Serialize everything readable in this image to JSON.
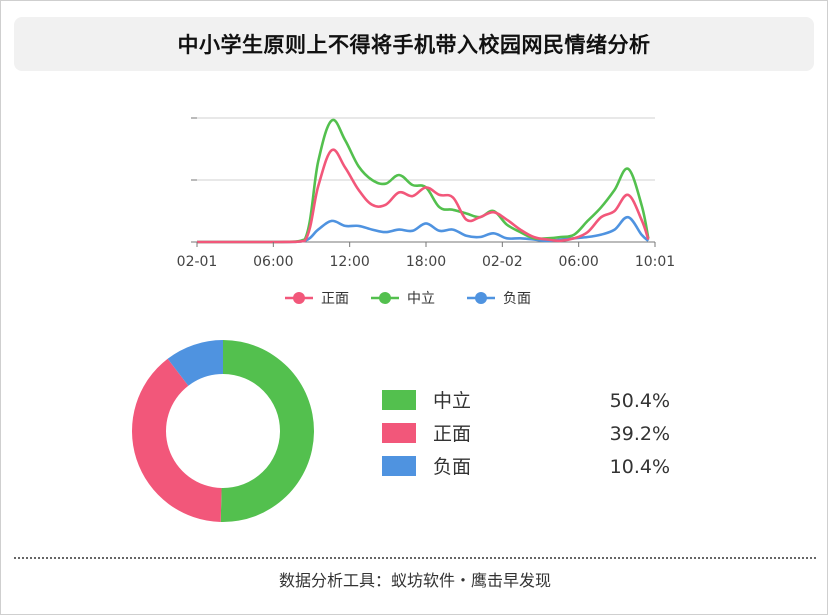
{
  "title": "中小学生原则上不得将手机带入校园网民情绪分析",
  "footer": "数据分析工具：蚁坊软件・鹰击早发现",
  "colors": {
    "positive": "#f2577a",
    "neutral": "#53c04e",
    "negative": "#4f93e0"
  },
  "chart_data": [
    {
      "type": "line",
      "x_tick_labels": [
        "02-01",
        "06:00",
        "12:00",
        "18:00",
        "02-02",
        "06:00",
        "10:01"
      ],
      "x_range": [
        0,
        34
      ],
      "x_unit": "hours since 02-01 00:00",
      "y_range": [
        0,
        100
      ],
      "grid": true,
      "legend_position": "bottom",
      "series": [
        {
          "name": "正面",
          "color": "#f2577a",
          "points": [
            [
              0,
              0
            ],
            [
              6,
              0
            ],
            [
              8,
              1
            ],
            [
              9,
              45
            ],
            [
              10,
              74
            ],
            [
              11,
              60
            ],
            [
              12,
              42
            ],
            [
              13,
              30
            ],
            [
              14,
              30
            ],
            [
              15,
              40
            ],
            [
              16,
              37
            ],
            [
              17,
              44
            ],
            [
              18,
              38
            ],
            [
              19,
              36
            ],
            [
              20,
              18
            ],
            [
              21,
              20
            ],
            [
              22,
              24
            ],
            [
              23,
              18
            ],
            [
              24,
              10
            ],
            [
              25,
              4
            ],
            [
              26,
              2
            ],
            [
              27,
              1
            ],
            [
              28,
              3
            ],
            [
              29,
              8
            ],
            [
              30,
              20
            ],
            [
              31,
              25
            ],
            [
              32,
              38
            ],
            [
              33,
              18
            ],
            [
              33.5,
              2
            ]
          ]
        },
        {
          "name": "中立",
          "color": "#53c04e",
          "points": [
            [
              0,
              0
            ],
            [
              6,
              0
            ],
            [
              8,
              2
            ],
            [
              9,
              65
            ],
            [
              10,
              98
            ],
            [
              11,
              82
            ],
            [
              12,
              61
            ],
            [
              13,
              50
            ],
            [
              14,
              47
            ],
            [
              15,
              54
            ],
            [
              16,
              46
            ],
            [
              17,
              44
            ],
            [
              18,
              28
            ],
            [
              19,
              26
            ],
            [
              20,
              23
            ],
            [
              21,
              20
            ],
            [
              22,
              25
            ],
            [
              23,
              14
            ],
            [
              24,
              8
            ],
            [
              25,
              3
            ],
            [
              26,
              3
            ],
            [
              27,
              4
            ],
            [
              28,
              6
            ],
            [
              29,
              17
            ],
            [
              30,
              28
            ],
            [
              31,
              42
            ],
            [
              32,
              59
            ],
            [
              33,
              30
            ],
            [
              33.5,
              3
            ]
          ]
        },
        {
          "name": "负面",
          "color": "#4f93e0",
          "points": [
            [
              0,
              0
            ],
            [
              6,
              0
            ],
            [
              8,
              1
            ],
            [
              9,
              10
            ],
            [
              10,
              17
            ],
            [
              11,
              13
            ],
            [
              12,
              13
            ],
            [
              13,
              10
            ],
            [
              14,
              8
            ],
            [
              15,
              10
            ],
            [
              16,
              9
            ],
            [
              17,
              15
            ],
            [
              18,
              9
            ],
            [
              19,
              10
            ],
            [
              20,
              5
            ],
            [
              21,
              4
            ],
            [
              22,
              7
            ],
            [
              23,
              3
            ],
            [
              24,
              3
            ],
            [
              25,
              2
            ],
            [
              26,
              1
            ],
            [
              27,
              2
            ],
            [
              28,
              3
            ],
            [
              29,
              4
            ],
            [
              30,
              6
            ],
            [
              31,
              10
            ],
            [
              32,
              20
            ],
            [
              33,
              6
            ],
            [
              33.5,
              1
            ]
          ]
        }
      ]
    },
    {
      "type": "pie",
      "style": "donut",
      "slices": [
        {
          "label": "中立",
          "value": 50.4,
          "display": "50.4%",
          "color": "#53c04e"
        },
        {
          "label": "正面",
          "value": 39.2,
          "display": "39.2%",
          "color": "#f2577a"
        },
        {
          "label": "负面",
          "value": 10.4,
          "display": "10.4%",
          "color": "#4f93e0"
        }
      ]
    }
  ]
}
